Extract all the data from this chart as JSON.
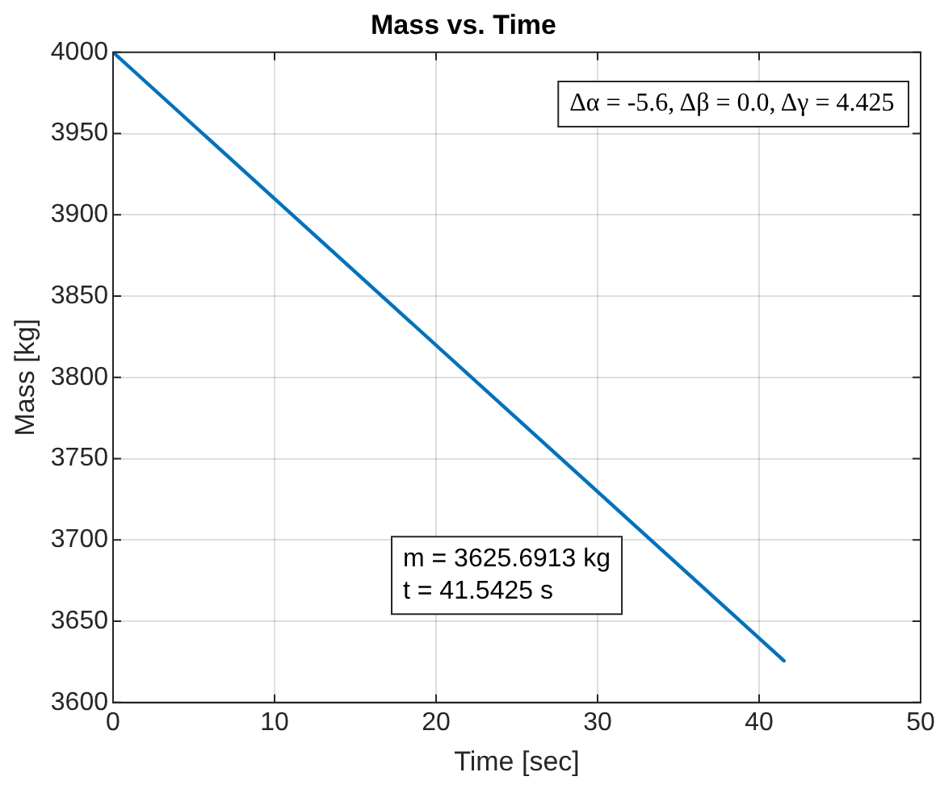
{
  "chart_data": {
    "type": "line",
    "title": "Mass vs. Time",
    "xlabel": "Time [sec]",
    "ylabel": "Mass [kg]",
    "x": [
      0,
      41.5425
    ],
    "series": [
      {
        "color": "#0072bd",
        "values": [
          4000,
          3625.6913
        ]
      }
    ],
    "xlim": [
      0,
      50
    ],
    "xticks": [
      0,
      10,
      20,
      30,
      40,
      50
    ],
    "ylim": [
      3600,
      4000
    ],
    "yticks": [
      3600,
      3650,
      3700,
      3750,
      3800,
      3850,
      3900,
      3950,
      4000
    ],
    "grid": true,
    "marker": "none",
    "line_style": "solid",
    "annotations": [
      "Δα = -5.6, Δβ = 0.0, Δγ = 4.425",
      "m = 3625.6913 kg\nt = 41.5425 s"
    ]
  }
}
